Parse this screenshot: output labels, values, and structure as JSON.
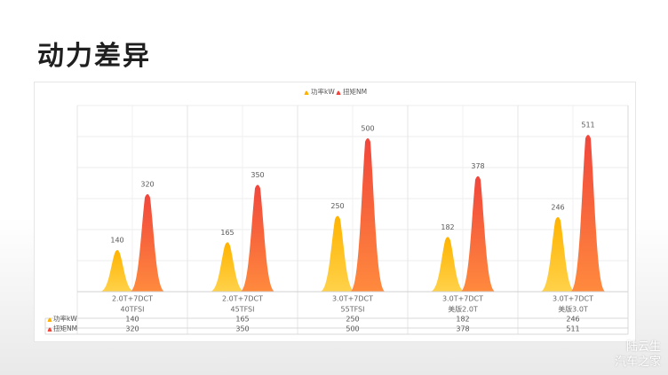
{
  "page": {
    "title": "动力差异"
  },
  "watermark": {
    "line1": "陆云生",
    "line2": "汽车之家"
  },
  "chart_data": {
    "type": "area",
    "categories": [
      {
        "engine": "2.0T+7DCT",
        "trim": "40TFSI"
      },
      {
        "engine": "2.0T+7DCT",
        "trim": "45TFSI"
      },
      {
        "engine": "3.0T+7DCT",
        "trim": "55TFSI"
      },
      {
        "engine": "3.0T+7DCT",
        "trim": "美版2.0T"
      },
      {
        "engine": "3.0T+7DCT",
        "trim": "美版3.0T"
      }
    ],
    "series": [
      {
        "name": "功率kW",
        "values": [
          140,
          165,
          250,
          182,
          246
        ],
        "color_top": "#ffb300",
        "color_bottom": "#ffd24a"
      },
      {
        "name": "扭矩NM",
        "values": [
          320,
          350,
          500,
          378,
          511
        ],
        "color_top": "#f1463c",
        "color_bottom": "#ff8a3d"
      }
    ],
    "ylim": [
      0,
      600
    ],
    "grid": true,
    "legend_position": "top-center",
    "data_labels": true,
    "data_table": true
  }
}
